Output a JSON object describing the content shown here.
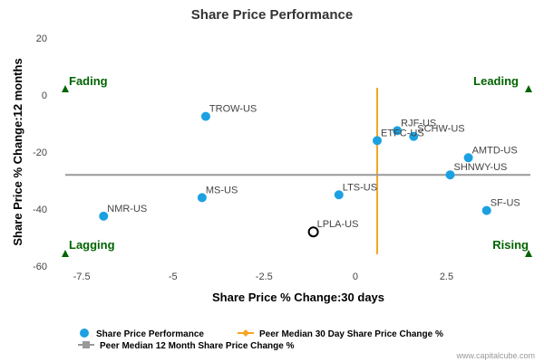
{
  "chart_data": {
    "type": "scatter",
    "title": "Share Price Performance",
    "xlabel": "Share Price % Change:30 days",
    "ylabel": "Share Price % Change:12 months",
    "xlim": [
      -8,
      4.8
    ],
    "ylim": [
      -60,
      20
    ],
    "x_ticks": [
      -7.5,
      -5,
      -2.5,
      0,
      2.5
    ],
    "y_ticks": [
      20,
      0,
      -20,
      -40,
      -60
    ],
    "x_tick_labels": [
      "-7.5",
      "-5",
      "-2.5",
      "0",
      "2.5"
    ],
    "y_tick_labels": [
      "20",
      "0",
      "-20",
      "-40",
      "-60"
    ],
    "grid": false,
    "series": [
      {
        "name": "Share Price Performance",
        "color": "#1ba1e2",
        "points": [
          {
            "label": "TROW-US",
            "x": -4.1,
            "y": -7.5
          },
          {
            "label": "RJF-US",
            "x": 1.15,
            "y": -12.5
          },
          {
            "label": "SCHW-US",
            "x": 1.6,
            "y": -14.5
          },
          {
            "label": "ETFC-US",
            "x": 0.6,
            "y": -16
          },
          {
            "label": "AMTD-US",
            "x": 3.1,
            "y": -22
          },
          {
            "label": "SHNWY-US",
            "x": 2.6,
            "y": -28
          },
          {
            "label": "LTS-US",
            "x": -0.45,
            "y": -35
          },
          {
            "label": "MS-US",
            "x": -4.2,
            "y": -36
          },
          {
            "label": "SF-US",
            "x": 3.6,
            "y": -40.5
          },
          {
            "label": "NMR-US",
            "x": -6.9,
            "y": -42.5
          }
        ]
      }
    ],
    "highlight": {
      "label": "LPLA-US",
      "x": -1.15,
      "y": -48,
      "color": "#000000"
    },
    "reference_lines": [
      {
        "name": "Peer Median 30 Day Share Price Change %",
        "orientation": "vertical",
        "value": 0.6,
        "color": "#f5a623"
      },
      {
        "name": "Peer Median 12 Month Share Price Change %",
        "orientation": "horizontal",
        "value": -28,
        "color": "#999999"
      }
    ],
    "quadrants": {
      "top_left": "Fading",
      "top_right": "Leading",
      "bottom_left": "Lagging",
      "bottom_right": "Rising"
    },
    "legend_position": "bottom-left",
    "colors": {
      "marker": "#1ba1e2",
      "quad_label": "#006400",
      "vline": "#f5a623",
      "hline": "#999999"
    }
  },
  "credit": "www.capitalcube.com"
}
